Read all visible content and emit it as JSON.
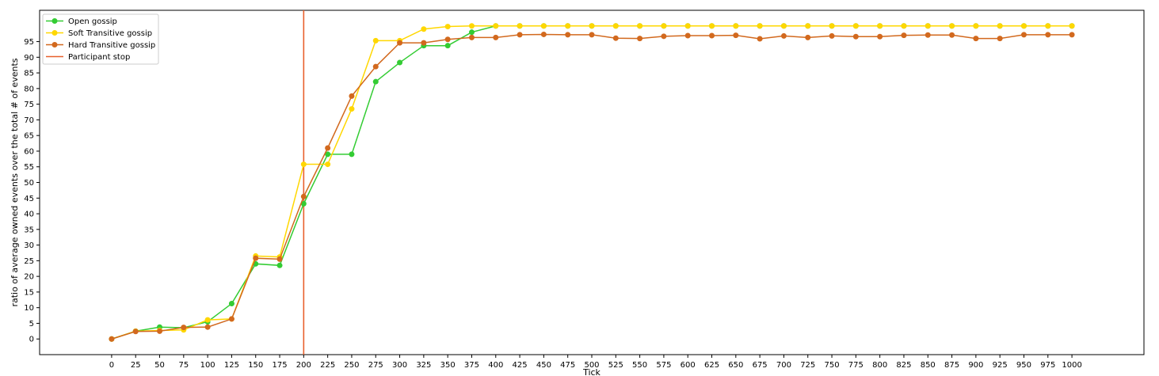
{
  "chart_data": {
    "type": "line",
    "xlabel": "Tick",
    "ylabel": "ratio of average owned events over the total # of events",
    "x": [
      0,
      25,
      50,
      75,
      100,
      125,
      150,
      175,
      200,
      225,
      250,
      275,
      300,
      325,
      350,
      375,
      400,
      425,
      450,
      475,
      500,
      525,
      550,
      575,
      600,
      625,
      650,
      675,
      700,
      725,
      750,
      775,
      800,
      825,
      850,
      875,
      900,
      925,
      950,
      975,
      1000
    ],
    "xlim": [
      -75,
      1075
    ],
    "ylim": [
      -5,
      105
    ],
    "yticks": [
      0,
      5,
      10,
      15,
      20,
      25,
      30,
      35,
      40,
      45,
      50,
      55,
      60,
      65,
      70,
      75,
      80,
      85,
      90,
      95
    ],
    "xticks": [
      0,
      25,
      50,
      75,
      100,
      125,
      150,
      175,
      200,
      225,
      250,
      275,
      300,
      325,
      350,
      375,
      400,
      425,
      450,
      475,
      500,
      525,
      550,
      575,
      600,
      625,
      650,
      675,
      700,
      725,
      750,
      775,
      800,
      825,
      850,
      875,
      900,
      925,
      950,
      975,
      1000
    ],
    "grid": false,
    "legend_position": "top-left",
    "series": [
      {
        "name": "Open gossip",
        "color": "#33cc33",
        "values": [
          0,
          2.5,
          3.8,
          3.6,
          5.5,
          11.3,
          24.0,
          23.5,
          43.2,
          59.0,
          59.0,
          82.2,
          88.3,
          93.7,
          93.7,
          98.0,
          100,
          100,
          100,
          100,
          100,
          100,
          100,
          100,
          100,
          100,
          100,
          100,
          100,
          100,
          100,
          100,
          100,
          100,
          100,
          100,
          100,
          100,
          100,
          100,
          100
        ]
      },
      {
        "name": "Soft Transitive gossip",
        "color": "#ffd700",
        "values": [
          0,
          2.5,
          2.7,
          2.9,
          6.1,
          6.4,
          26.5,
          26.2,
          55.8,
          55.8,
          73.5,
          95.3,
          95.3,
          99.0,
          99.8,
          100,
          100,
          100,
          100,
          100,
          100,
          100,
          100,
          100,
          100,
          100,
          100,
          100,
          100,
          100,
          100,
          100,
          100,
          100,
          100,
          100,
          100,
          100,
          100,
          100,
          100
        ]
      },
      {
        "name": "Hard Transitive gossip",
        "color": "#d2691e",
        "values": [
          0,
          2.4,
          2.5,
          3.7,
          3.8,
          6.4,
          25.8,
          25.5,
          45.5,
          61.0,
          77.6,
          87.0,
          94.6,
          94.6,
          95.7,
          96.3,
          96.3,
          97.2,
          97.3,
          97.2,
          97.2,
          96.1,
          96.0,
          96.7,
          96.9,
          96.9,
          97.0,
          95.9,
          96.8,
          96.3,
          96.8,
          96.6,
          96.6,
          97.0,
          97.1,
          97.1,
          96.0,
          96.0,
          97.2,
          97.2,
          97.2
        ]
      }
    ],
    "annotations": [
      {
        "name": "Participant stop",
        "type": "vline",
        "x": 200,
        "color": "#e8602c"
      }
    ]
  }
}
